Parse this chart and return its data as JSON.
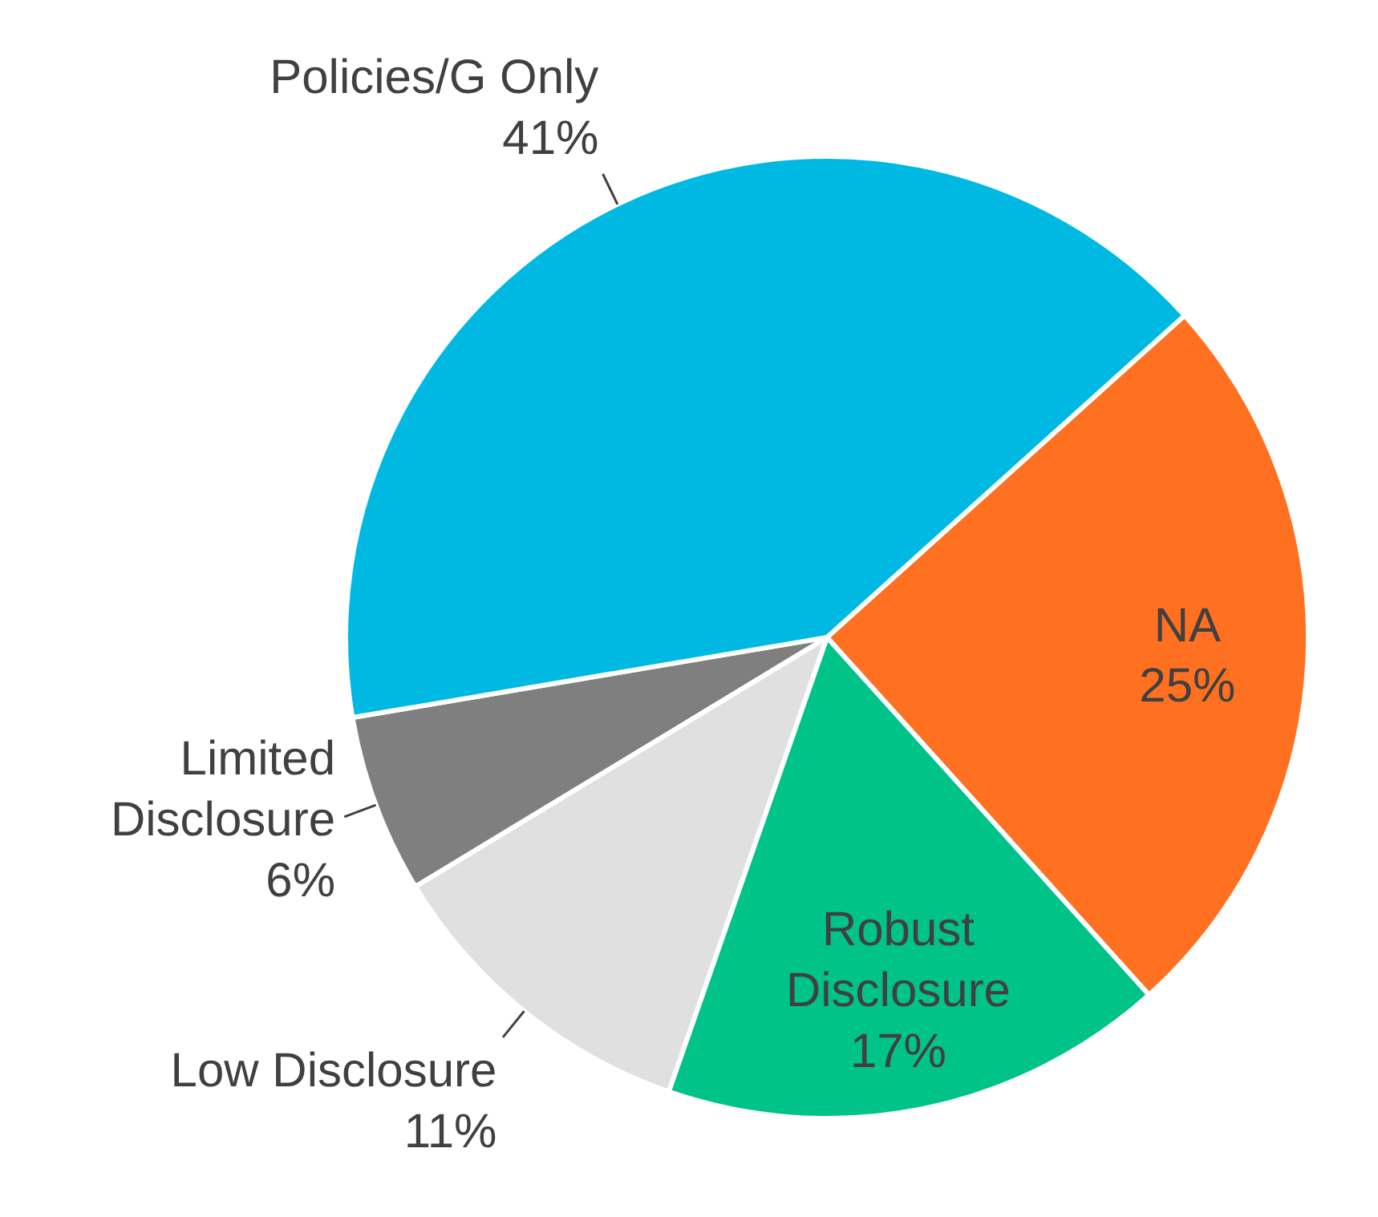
{
  "chart_data": {
    "type": "pie",
    "categories": [
      "NA",
      "Robust Disclosure",
      "Low Disclosure",
      "Limited Disclosure",
      "Policies/G Only"
    ],
    "values": [
      25,
      17,
      11,
      6,
      41
    ],
    "value_labels": [
      "25%",
      "17%",
      "11%",
      "6%",
      "41%"
    ],
    "colors": [
      "#ff7020",
      "#00c389",
      "#e0e0e0",
      "#7f7f7f",
      "#00b9e3"
    ]
  }
}
